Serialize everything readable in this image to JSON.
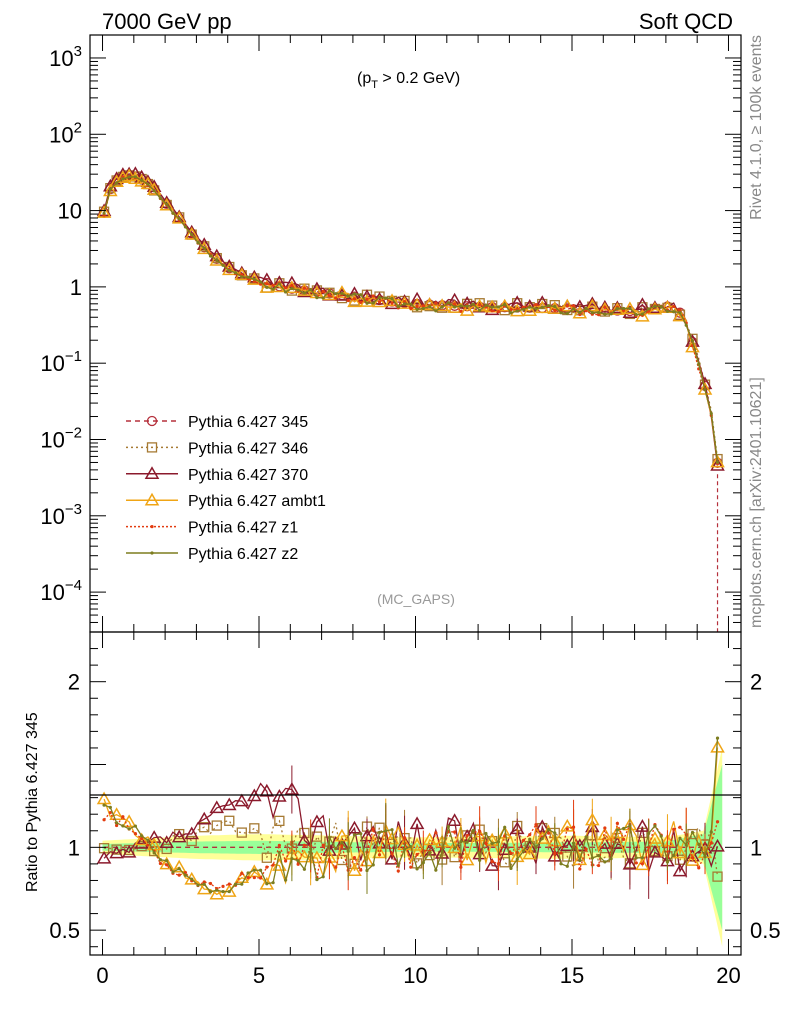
{
  "header": {
    "left": "7000 GeV pp",
    "right": "Soft QCD"
  },
  "side_text": {
    "rivet": "Rivet 4.1.0, ≥ 100k events",
    "mcplots": "mcplots.cern.ch [arXiv:2401.10621]"
  },
  "chart_data": {
    "type": "line",
    "title": "",
    "annotation": "(p_T > 0.2 GeV)",
    "annotation_parts": {
      "pre": "(p",
      "sub": "T",
      "post": " > 0.2 GeV)"
    },
    "analysis_label": "(MC_GAPS)",
    "xlabel": "",
    "ylabel_ratio": "Ratio to Pythia 6.427 345",
    "xlim": [
      -0.4,
      20.4
    ],
    "ylim_main": [
      3e-05,
      2000
    ],
    "yscale_main": "log",
    "ylim_ratio": [
      0.35,
      2.3
    ],
    "x_ticks": [
      {
        "value": 0,
        "label": "0"
      },
      {
        "value": 5,
        "label": "5"
      },
      {
        "value": 10,
        "label": "10"
      },
      {
        "value": 15,
        "label": "15"
      },
      {
        "value": 20,
        "label": "20"
      }
    ],
    "y_ticks_main": [
      {
        "exp": -4,
        "base": "10",
        "sup": "−4"
      },
      {
        "exp": -3,
        "base": "10",
        "sup": "−3"
      },
      {
        "exp": -2,
        "base": "10",
        "sup": "−2"
      },
      {
        "exp": -1,
        "base": "10",
        "sup": "−1"
      },
      {
        "exp": 0,
        "base": "1",
        "sup": ""
      },
      {
        "exp": 1,
        "base": "10",
        "sup": ""
      },
      {
        "exp": 2,
        "base": "10",
        "sup": "2"
      },
      {
        "exp": 3,
        "base": "10",
        "sup": "3"
      }
    ],
    "y_ticks_ratio": [
      {
        "value": 0.5,
        "label": "0.5"
      },
      {
        "value": 1,
        "label": "1"
      },
      {
        "value": 2,
        "label": "2"
      }
    ],
    "reference_shape": {
      "x": [
        0.0,
        0.2,
        0.5,
        0.8,
        1.0,
        1.3,
        1.6,
        2.0,
        2.5,
        3.0,
        3.5,
        4.0,
        4.5,
        5.0,
        5.5,
        6.0,
        7.0,
        8.0,
        9.0,
        10.0,
        11.0,
        12.0,
        13.0,
        14.0,
        15.0,
        16.0,
        17.0,
        17.5,
        18.0,
        18.4,
        18.7,
        19.0,
        19.2,
        19.4,
        19.5,
        19.6,
        19.7
      ],
      "y": [
        7.5,
        18.0,
        26.0,
        29.0,
        28.5,
        25.0,
        20.0,
        13.0,
        7.5,
        4.2,
        2.6,
        1.8,
        1.4,
        1.2,
        1.05,
        0.95,
        0.85,
        0.75,
        0.66,
        0.6,
        0.57,
        0.55,
        0.54,
        0.53,
        0.52,
        0.5,
        0.48,
        0.5,
        0.56,
        0.5,
        0.3,
        0.12,
        0.06,
        0.03,
        0.015,
        0.007,
        0.0035
      ]
    },
    "series": [
      {
        "name": "Pythia 6.427 345",
        "color": "#b5303c",
        "dash": "5,4",
        "marker": "circle",
        "seed": 11,
        "scale": 1.0,
        "ratio_trend": [
          [
            0,
            1.0
          ],
          [
            20,
            1.0
          ]
        ]
      },
      {
        "name": "Pythia 6.427 346",
        "color": "#a67a33",
        "dash": "2,3",
        "marker": "square",
        "seed": 23,
        "scale": 1.0,
        "ratio_trend": [
          [
            0,
            0.96
          ],
          [
            1.5,
            1.0
          ],
          [
            3,
            1.08
          ],
          [
            4,
            1.12
          ],
          [
            5,
            1.08
          ],
          [
            7,
            1.02
          ],
          [
            10,
            1.0
          ],
          [
            20,
            0.98
          ]
        ]
      },
      {
        "name": "Pythia 6.427 370",
        "color": "#8b1a2c",
        "dash": "",
        "marker": "triangle",
        "seed": 37,
        "scale": 1.05,
        "ratio_trend": [
          [
            0,
            0.92
          ],
          [
            1.5,
            1.02
          ],
          [
            3,
            1.1
          ],
          [
            4,
            1.25
          ],
          [
            5,
            1.3
          ],
          [
            6,
            1.2
          ],
          [
            7,
            1.1
          ],
          [
            9,
            1.05
          ],
          [
            15,
            1.0
          ],
          [
            20,
            0.98
          ]
        ]
      },
      {
        "name": "Pythia 6.427 ambt1",
        "color": "#f0a515",
        "dash": "",
        "marker": "triangle",
        "seed": 41,
        "scale": 0.97,
        "ratio_trend": [
          [
            0,
            1.25
          ],
          [
            1,
            1.12
          ],
          [
            2,
            0.92
          ],
          [
            3,
            0.78
          ],
          [
            3.8,
            0.72
          ],
          [
            5,
            0.85
          ],
          [
            7,
            0.95
          ],
          [
            10,
            1.02
          ],
          [
            15,
            1.02
          ],
          [
            20,
            1.05
          ]
        ]
      },
      {
        "name": "Pythia 6.427 z1",
        "color": "#e33c10",
        "dash": "2,2",
        "marker": "dot",
        "seed": 53,
        "scale": 0.97,
        "ratio_trend": [
          [
            0,
            1.22
          ],
          [
            1,
            1.1
          ],
          [
            2,
            0.9
          ],
          [
            3,
            0.8
          ],
          [
            3.8,
            0.76
          ],
          [
            5,
            0.86
          ],
          [
            7,
            0.95
          ],
          [
            10,
            1.0
          ],
          [
            15,
            1.0
          ],
          [
            20,
            1.02
          ]
        ]
      },
      {
        "name": "Pythia 6.427 z2",
        "color": "#7d7d1f",
        "dash": "",
        "marker": "dot",
        "seed": 67,
        "scale": 0.97,
        "ratio_trend": [
          [
            0,
            1.24
          ],
          [
            1,
            1.11
          ],
          [
            2,
            0.91
          ],
          [
            3,
            0.79
          ],
          [
            3.8,
            0.74
          ],
          [
            5,
            0.85
          ],
          [
            7,
            0.94
          ],
          [
            10,
            1.0
          ],
          [
            15,
            1.0
          ],
          [
            20,
            1.03
          ]
        ]
      }
    ],
    "legend_position": "middle-left",
    "ratio_bands": [
      {
        "name": "outer-band",
        "color": "#ffff99",
        "halfwidth": [
          [
            0,
            0.04
          ],
          [
            3,
            0.07
          ],
          [
            5,
            0.08
          ],
          [
            10,
            0.06
          ],
          [
            15,
            0.07
          ],
          [
            18,
            0.06
          ],
          [
            19.2,
            0.1
          ],
          [
            19.8,
            0.6
          ]
        ]
      },
      {
        "name": "inner-band",
        "color": "#99ff99",
        "halfwidth": [
          [
            0,
            0.02
          ],
          [
            3,
            0.035
          ],
          [
            5,
            0.04
          ],
          [
            10,
            0.025
          ],
          [
            15,
            0.03
          ],
          [
            18,
            0.035
          ],
          [
            19.2,
            0.08
          ],
          [
            19.8,
            0.5
          ]
        ]
      }
    ]
  }
}
